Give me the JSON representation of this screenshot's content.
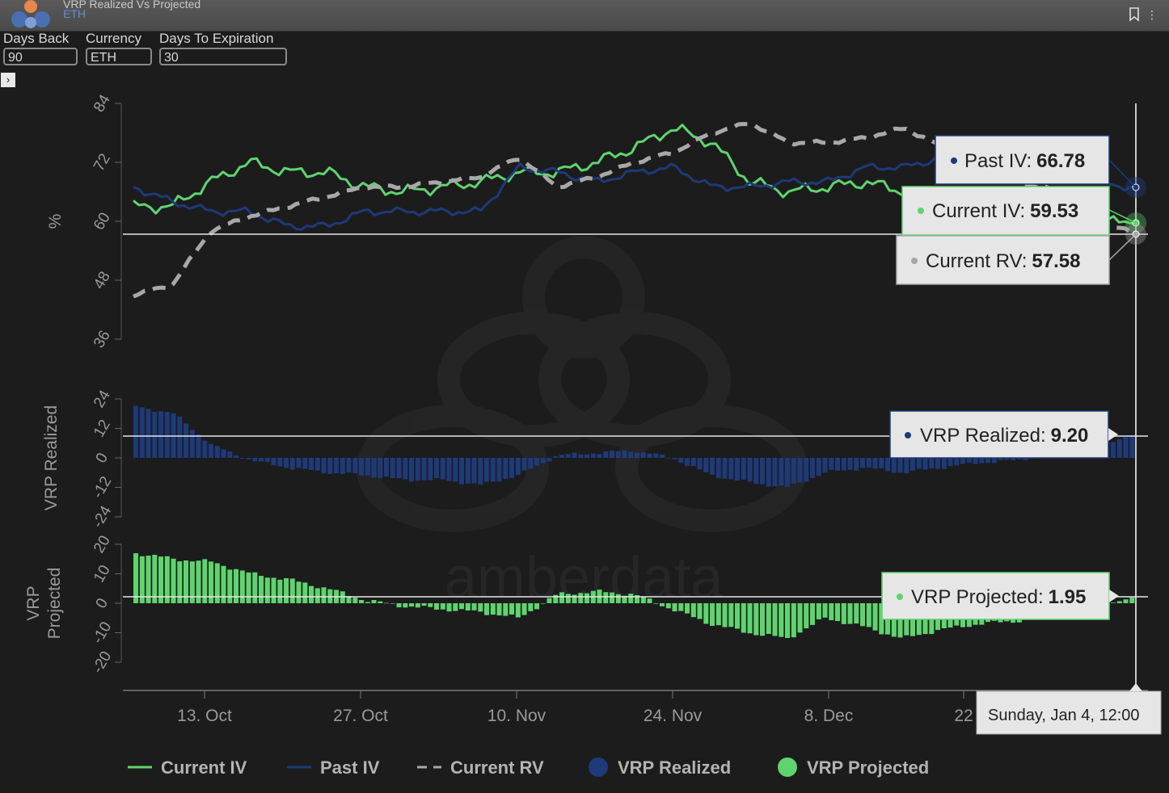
{
  "window": {
    "title": "VRP Realized Vs Projected",
    "subtitle": "ETH"
  },
  "controls": {
    "days_back": {
      "label": "Days Back",
      "value": "90"
    },
    "currency": {
      "label": "Currency",
      "value": "ETH"
    },
    "days_to_expiration": {
      "label": "Days To Expiration",
      "value": "30"
    }
  },
  "watermark": "amberdata",
  "colors": {
    "current_iv": "#5fd46e",
    "past_iv": "#1e3a78",
    "current_rv": "#a8a8a8",
    "vrp_realized": "#1e3a78",
    "vrp_projected": "#5fd46e",
    "background": "#1c1c1d"
  },
  "chart_data": [
    {
      "type": "line",
      "ylabel": "%",
      "ylim": [
        36,
        84
      ],
      "yticks": [
        "36",
        "48",
        "60",
        "72",
        "84"
      ],
      "x": [
        "Oct 6",
        "Oct 9",
        "Oct 13",
        "Oct 16",
        "Oct 20",
        "Oct 23",
        "Oct 27",
        "Oct 30",
        "Nov 3",
        "Nov 6",
        "Nov 10",
        "Nov 13",
        "Nov 17",
        "Nov 20",
        "Nov 24",
        "Nov 27",
        "Dec 1",
        "Dec 4",
        "Dec 8",
        "Dec 11",
        "Dec 15",
        "Dec 18",
        "Dec 22",
        "Dec 25",
        "Dec 29",
        "Jan 1",
        "Jan 4"
      ],
      "series": [
        {
          "name": "Current IV",
          "values": [
            63,
            63,
            68,
            72,
            70,
            70,
            67,
            66,
            67,
            68,
            70,
            70,
            72,
            75,
            79,
            76,
            68,
            66,
            67,
            68,
            66,
            62,
            62,
            63,
            62,
            60,
            59.53
          ]
        },
        {
          "name": "Past IV",
          "values": [
            67,
            64,
            62,
            62,
            59,
            59,
            62,
            62,
            62,
            62,
            71,
            70,
            68,
            70,
            71,
            67,
            67,
            68,
            68,
            71,
            71,
            73,
            75,
            74,
            71,
            68,
            66.78
          ]
        },
        {
          "name": "Current RV",
          "values": [
            45,
            47,
            58,
            61,
            63,
            65,
            67,
            67,
            68,
            69,
            73,
            67,
            69,
            72,
            74,
            78,
            80,
            76,
            76,
            77,
            79,
            75,
            73,
            68,
            66,
            60,
            57.58
          ]
        }
      ]
    },
    {
      "type": "bar",
      "ylabel": "VRP Realized",
      "ylim": [
        -24,
        24
      ],
      "yticks": [
        "-24",
        "-12",
        "0",
        "12",
        "24"
      ],
      "series": [
        {
          "name": "VRP Realized",
          "values": [
            21,
            18,
            5,
            -1,
            -4,
            -6,
            -7,
            -9,
            -9,
            -11,
            -7,
            1,
            2,
            3,
            0,
            -7,
            -10,
            -12,
            -6,
            -4,
            -6,
            -4,
            -2,
            -1,
            2,
            5,
            9.2
          ]
        }
      ]
    },
    {
      "type": "bar",
      "ylabel": "VRP Projected",
      "ylim": [
        -20,
        20
      ],
      "yticks": [
        "-20",
        "-10",
        "0",
        "10",
        "20"
      ],
      "series": [
        {
          "name": "VRP Projected",
          "values": [
            17,
            15,
            14,
            10,
            8,
            5,
            1,
            -1,
            -2,
            -3,
            -5,
            3,
            4,
            3,
            -2,
            -7,
            -10,
            -12,
            -5,
            -8,
            -12,
            -9,
            -7,
            -6,
            -4,
            -2,
            1.95
          ]
        }
      ]
    }
  ],
  "x_axis": {
    "ticks": [
      "13. Oct",
      "27. Oct",
      "10. Nov",
      "24. Nov",
      "8. Dec",
      "22"
    ]
  },
  "tooltips": {
    "past_iv": {
      "label": "Past IV:",
      "value": "66.78"
    },
    "current_iv": {
      "label": "Current IV:",
      "value": "59.53"
    },
    "current_rv": {
      "label": "Current RV:",
      "value": "57.58"
    },
    "vrp_realized": {
      "label": "VRP Realized:",
      "value": "9.20"
    },
    "vrp_projected": {
      "label": "VRP Projected:",
      "value": "1.95"
    },
    "date": "Sunday, Jan 4, 12:00"
  },
  "legend": [
    {
      "name": "Current IV",
      "icon": "line"
    },
    {
      "name": "Past IV",
      "icon": "line"
    },
    {
      "name": "Current RV",
      "icon": "dashed-line"
    },
    {
      "name": "VRP Realized",
      "icon": "circle"
    },
    {
      "name": "VRP Projected",
      "icon": "circle"
    }
  ]
}
